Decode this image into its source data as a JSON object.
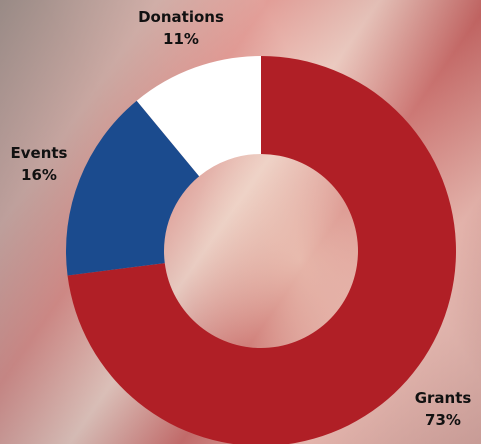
{
  "chart_data": {
    "type": "pie",
    "variant": "donut",
    "categories": [
      "Grants",
      "Events",
      "Donations"
    ],
    "values": [
      73,
      16,
      11
    ],
    "value_labels": [
      "73%",
      "16%",
      "11%"
    ],
    "colors": [
      "#b01f26",
      "#1b4b8e",
      "#ffffff"
    ],
    "title": "",
    "legend": "none"
  }
}
